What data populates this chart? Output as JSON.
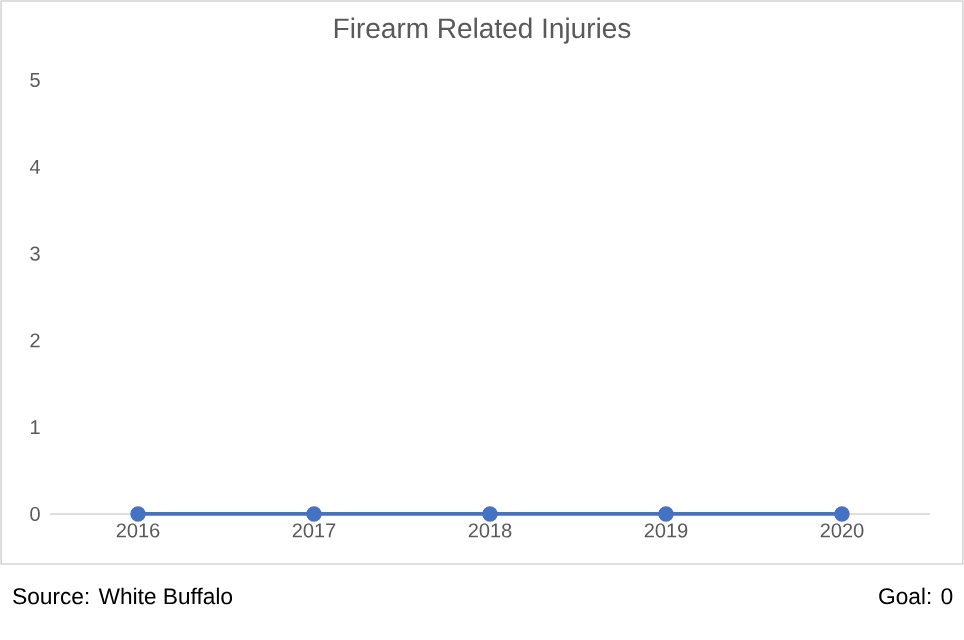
{
  "chart_data": {
    "type": "line",
    "title": "Firearm Related Injuries",
    "categories": [
      "2016",
      "2017",
      "2018",
      "2019",
      "2020"
    ],
    "series": [
      {
        "color": "#4472c4",
        "values": [
          0,
          0,
          0,
          0,
          0
        ]
      }
    ],
    "ylim": [
      0,
      5
    ],
    "yticks": [
      0,
      1,
      2,
      3,
      4,
      5
    ],
    "marker": "circle",
    "annotations": [
      "Source: White Buffalo",
      "Goal: 0"
    ]
  }
}
